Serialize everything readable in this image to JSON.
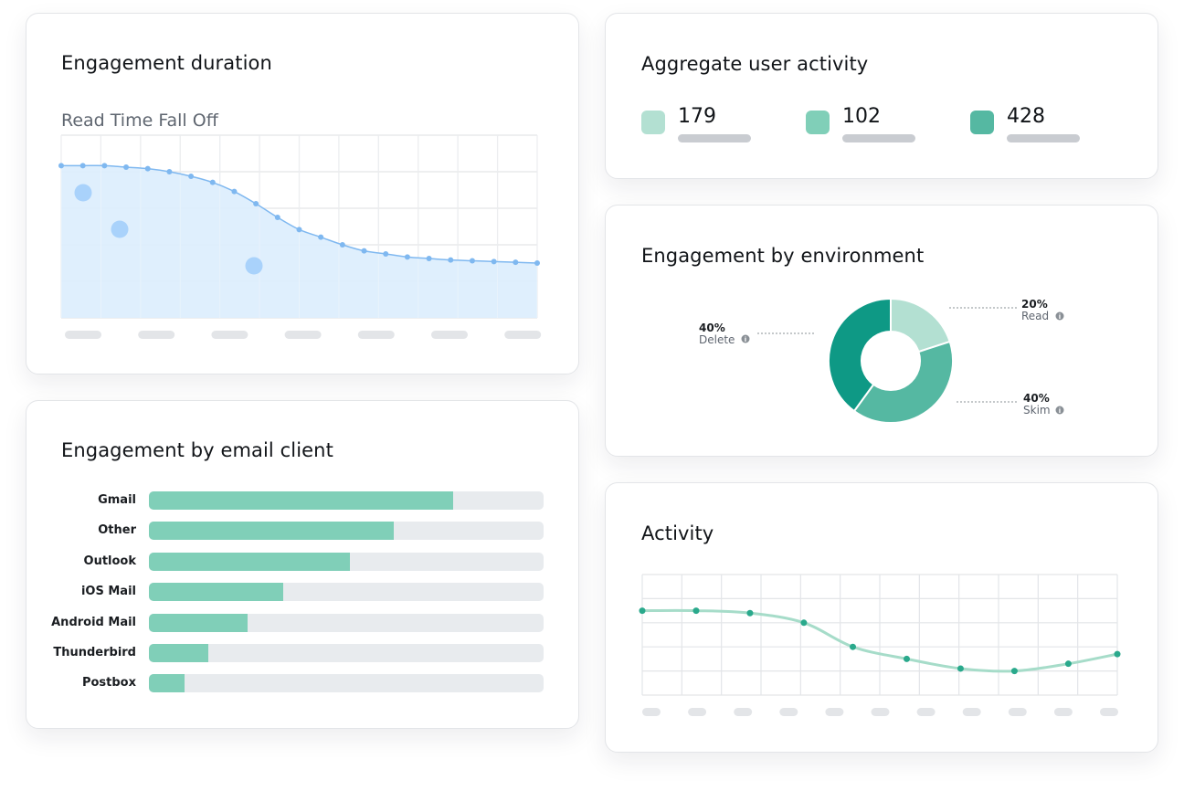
{
  "engagement_duration": {
    "title": "Engagement duration",
    "chart_title": "Read Time Fall Off",
    "chart_data": {
      "type": "area",
      "title": "Read Time Fall Off",
      "series": [
        {
          "values": [
            100,
            100,
            100,
            99,
            98,
            96,
            93,
            89,
            83,
            75,
            66,
            58,
            53,
            48,
            44,
            42,
            40,
            39,
            38,
            37.5,
            37,
            36.5,
            36
          ]
        }
      ],
      "ylim": [
        0,
        120
      ],
      "grid": true,
      "color": "#7fb8f0",
      "fill": "#dcedfd"
    }
  },
  "email_client": {
    "title": "Engagement by email client",
    "chart_data": {
      "type": "bar",
      "orientation": "horizontal",
      "categories": [
        "Gmail",
        "Other",
        "Outlook",
        "iOS Mail",
        "Android Mail",
        "Thunderbird",
        "Postbox"
      ],
      "values": [
        77,
        62,
        51,
        34,
        25,
        15,
        9
      ],
      "xlim": [
        0,
        100
      ],
      "color": "#80cfb8",
      "track_color": "#e8ebee"
    }
  },
  "aggregate": {
    "title": "Aggregate user activity",
    "stats": [
      {
        "value": "179",
        "color": "#b3e0d2"
      },
      {
        "value": "102",
        "color": "#80cfb8"
      },
      {
        "value": "428",
        "color": "#55b8a2"
      }
    ]
  },
  "environment": {
    "title": "Engagement by environment",
    "chart_data": {
      "type": "pie",
      "donut": true,
      "slices": [
        {
          "label": "Read",
          "percent_label": "20%",
          "value": 20,
          "color": "#b3e0d2"
        },
        {
          "label": "Skim",
          "percent_label": "40%",
          "value": 40,
          "color": "#55b8a2"
        },
        {
          "label": "Delete",
          "percent_label": "40%",
          "value": 40,
          "color": "#0e9985"
        }
      ],
      "info_icon": "info-icon"
    }
  },
  "activity": {
    "title": "Activity",
    "chart_data": {
      "type": "line",
      "series": [
        {
          "values": [
            70,
            70,
            68,
            60,
            40,
            30,
            22,
            20,
            26,
            34
          ]
        }
      ],
      "point_x": [
        0,
        1.1,
        2.2,
        3.3,
        4.3,
        5.4,
        6.5,
        7.6,
        8.7,
        9.7
      ],
      "ylim": [
        0,
        100
      ],
      "grid": true,
      "color": "#a6dcc9",
      "point_color": "#2aa98c"
    }
  }
}
